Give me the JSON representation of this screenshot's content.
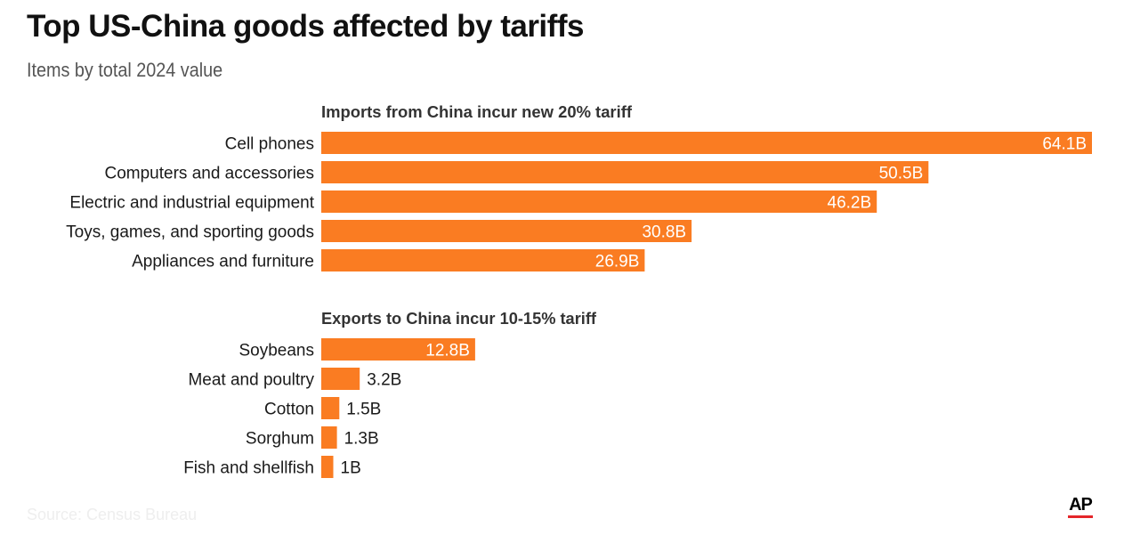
{
  "title": "Top US-China goods affected by tariffs",
  "subtitle": "Items by total 2024 value",
  "footer_note": "Source: Census Bureau",
  "brand": {
    "logo_text": "AP",
    "logo_bar_color": "#e4262a"
  },
  "colors": {
    "bar": "#fa7c22",
    "label": "#1a1a1a",
    "value_inside": "#ffffff",
    "value_outside": "#1a1a1a"
  },
  "chart_data": [
    {
      "type": "bar",
      "orientation": "horizontal",
      "title": "Imports from China incur new 20% tariff",
      "categories": [
        "Cell phones",
        "Computers and accessories",
        "Electric and industrial equipment",
        "Toys, games, and sporting goods",
        "Appliances and furniture"
      ],
      "values": [
        64.1,
        50.5,
        46.2,
        30.8,
        26.9
      ],
      "value_labels": [
        "64.1B",
        "50.5B",
        "46.2B",
        "30.8B",
        "26.9B"
      ],
      "unit": "billion USD",
      "xlim": [
        0,
        64.1
      ],
      "grid": false
    },
    {
      "type": "bar",
      "orientation": "horizontal",
      "title": "Exports to China incur 10-15% tariff",
      "categories": [
        "Soybeans",
        "Meat and poultry",
        "Cotton",
        "Sorghum",
        "Fish and shellfish"
      ],
      "values": [
        12.8,
        3.2,
        1.5,
        1.3,
        1
      ],
      "value_labels": [
        "12.8B",
        "3.2B",
        "1.5B",
        "1.3B",
        "1B"
      ],
      "unit": "billion USD",
      "xlim": [
        0,
        64.1
      ],
      "grid": false
    }
  ]
}
